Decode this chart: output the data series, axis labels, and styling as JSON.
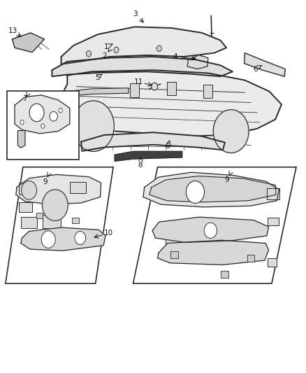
{
  "background_color": "#ffffff",
  "line_color": "#2a2a2a",
  "figsize": [
    4.38,
    5.33
  ],
  "dpi": 100
}
